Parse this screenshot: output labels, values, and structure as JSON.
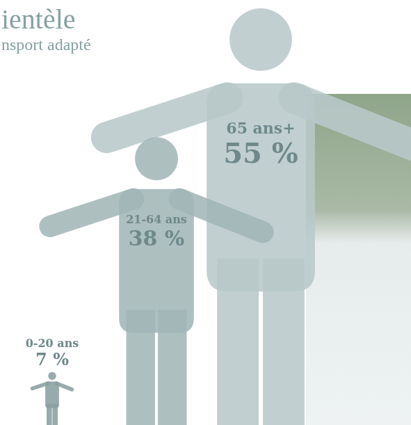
{
  "chart_data": {
    "type": "pictograph",
    "title": "ientèle",
    "subtitle": "nsport adapté",
    "categories": [
      "0-20 ans",
      "21-64 ans",
      "65 ans+"
    ],
    "values": [
      7,
      38,
      55
    ],
    "value_labels": [
      "7 %",
      "38 %",
      "55 %"
    ],
    "colors": [
      "#8a9fa0",
      "#a3b6b7",
      "#b8c8c9"
    ],
    "ylim": [
      0,
      55
    ],
    "yticks": [],
    "tick_labels": false,
    "data_labels": true
  }
}
